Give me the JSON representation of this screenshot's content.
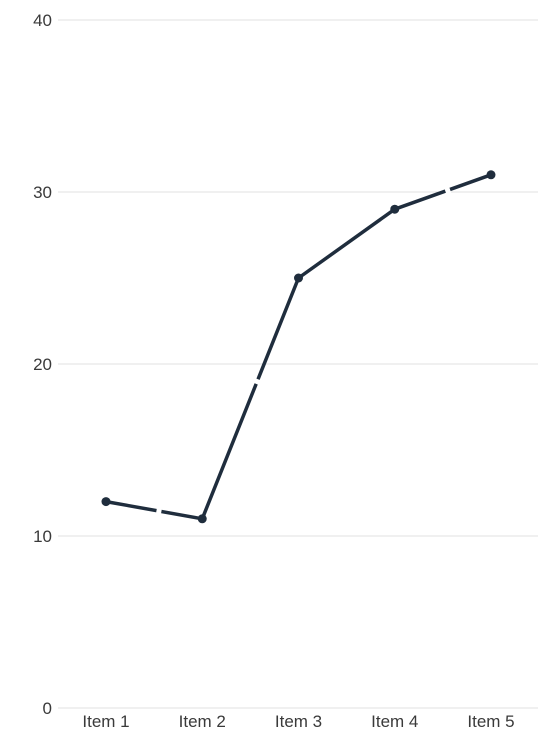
{
  "chart_data": {
    "type": "line",
    "title": "",
    "xlabel": "",
    "ylabel": "",
    "categories": [
      "Item 1",
      "Item 2",
      "Item 3",
      "Item 4",
      "Item 5"
    ],
    "series": [
      {
        "values": [
          12,
          11,
          25,
          29,
          31
        ],
        "color": "#1f2d3d"
      }
    ],
    "ylim": [
      0,
      40
    ],
    "yticks": [
      0,
      10,
      20,
      30,
      40
    ],
    "grid": true,
    "legend": "none"
  }
}
